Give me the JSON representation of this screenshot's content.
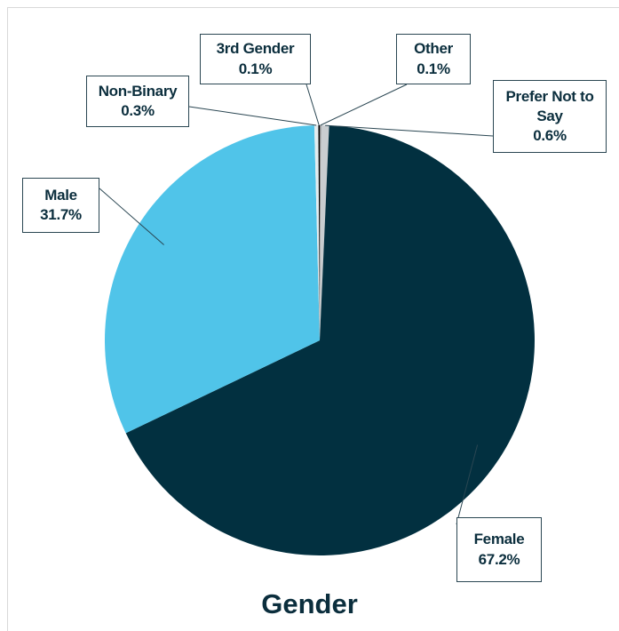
{
  "chart_data": {
    "type": "pie",
    "title": "Gender",
    "categories": [
      "Other",
      "Prefer Not to Say",
      "Female",
      "Male",
      "Non-Binary",
      "3rd Gender"
    ],
    "values": [
      0.1,
      0.6,
      67.2,
      31.7,
      0.3,
      0.1
    ],
    "value_labels": [
      "0.1%",
      "0.6%",
      "67.2%",
      "31.7%",
      "0.3%",
      "0.1%"
    ],
    "colors": [
      "#8c8c8c",
      "#c9cdd0",
      "#023040",
      "#50c4e9",
      "#e4ecef",
      "#000000"
    ]
  }
}
